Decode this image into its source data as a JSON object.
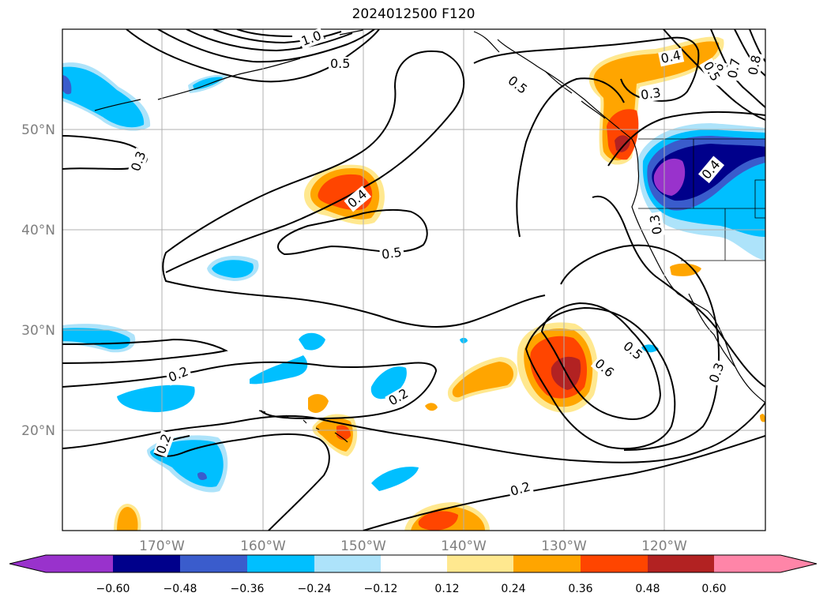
{
  "title": "2024012500 F120",
  "map": {
    "lat_labels": [
      "50°N",
      "40°N",
      "30°N",
      "20°N"
    ],
    "lon_labels": [
      "170°W",
      "160°W",
      "150°W",
      "140°W",
      "130°W",
      "120°W"
    ],
    "contour_labels": [
      "0.5",
      "0.5",
      "0.4",
      "0.3",
      "0.5",
      "0.6",
      "0.7",
      "0.8",
      "0.3",
      "0.4",
      "0.3",
      "0.4",
      "0.5",
      "0.5",
      "0.6",
      "0.3",
      "0.2",
      "0.2",
      "0.2",
      "0.2",
      "1.0"
    ]
  },
  "colorbar": {
    "ticks": [
      "−0.60",
      "−0.48",
      "−0.36",
      "−0.24",
      "−0.12",
      "0.12",
      "0.24",
      "0.36",
      "0.48",
      "0.60"
    ],
    "colors": [
      "#9932cc",
      "#00008b",
      "#3a5ccc",
      "#00bfff",
      "#ade3fa",
      "#ffffff",
      "#ffe88f",
      "#ffa500",
      "#ff4500",
      "#b22222",
      "#ff85a8"
    ]
  },
  "palette": {
    "purple": "#9932cc",
    "navy": "#00008b",
    "royal": "#3a5ccc",
    "sky": "#00bfff",
    "pale_blue": "#ade3fa",
    "pale_yellow": "#ffe88f",
    "orange": "#ffa500",
    "red_orange": "#ff4500",
    "dark_red": "#b22222",
    "pink": "#ff85a8",
    "grid": "#b0b0b0",
    "contour": "#000000",
    "label_grey": "#7f7f7f"
  }
}
